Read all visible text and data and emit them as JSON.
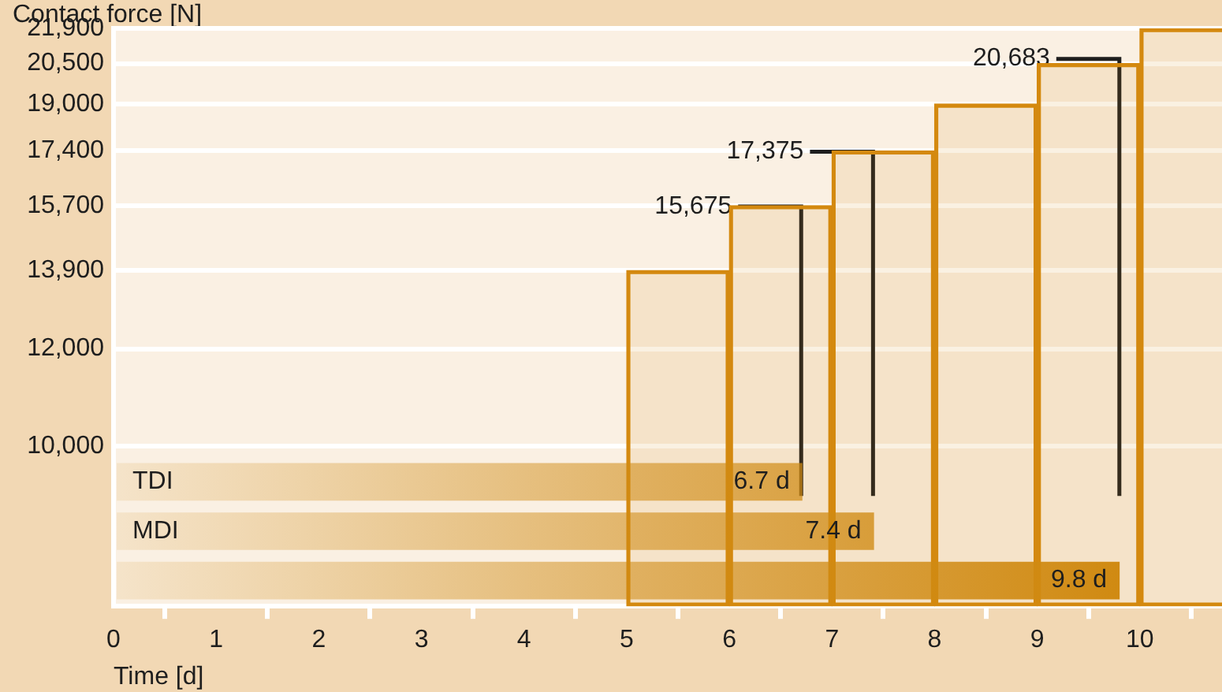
{
  "chart_data": [
    {
      "type": "bar",
      "ylabel": "Contact force [N]",
      "xlabel": "Time [d]",
      "x": [
        5.5,
        6.5,
        7.5,
        8.5,
        9.5,
        10.5
      ],
      "values": [
        13900,
        15700,
        17400,
        19000,
        20500,
        21900
      ],
      "color": "#d4890f",
      "log": "y",
      "grid": "y",
      "xlim": [
        0,
        10.8
      ],
      "ylim": [
        7400,
        21900
      ],
      "xticks": [
        0,
        1,
        2,
        3,
        4,
        5,
        6,
        7,
        8,
        9,
        10
      ],
      "yticks": [
        {
          "value": 10000,
          "label": "10,000"
        },
        {
          "value": 12000,
          "label": "12,000"
        },
        {
          "value": 13900,
          "label": "13,900"
        },
        {
          "value": 15700,
          "label": "15,700"
        },
        {
          "value": 17400,
          "label": "17,400"
        },
        {
          "value": 19000,
          "label": "19,000"
        },
        {
          "value": 20500,
          "label": "20,500"
        },
        {
          "value": 21900,
          "label": "21,900"
        }
      ],
      "annotations": [
        {
          "text": "15,675",
          "x": 6.7,
          "y": 15675
        },
        {
          "text": "17,375",
          "x": 7.4,
          "y": 17375
        },
        {
          "text": "20,683",
          "x": 9.8,
          "y": 20683
        }
      ]
    },
    {
      "type": "bar",
      "orientation": "horizontal",
      "categories": [
        "TDI",
        "MDI",
        null
      ],
      "values": [
        6.7,
        7.4,
        9.8
      ],
      "value_labels": [
        "6.7 d",
        "7.4 d",
        "9.8 d"
      ],
      "color": "#d08a12",
      "xlim": [
        0,
        10.8
      ],
      "tick_labels": "y"
    }
  ]
}
